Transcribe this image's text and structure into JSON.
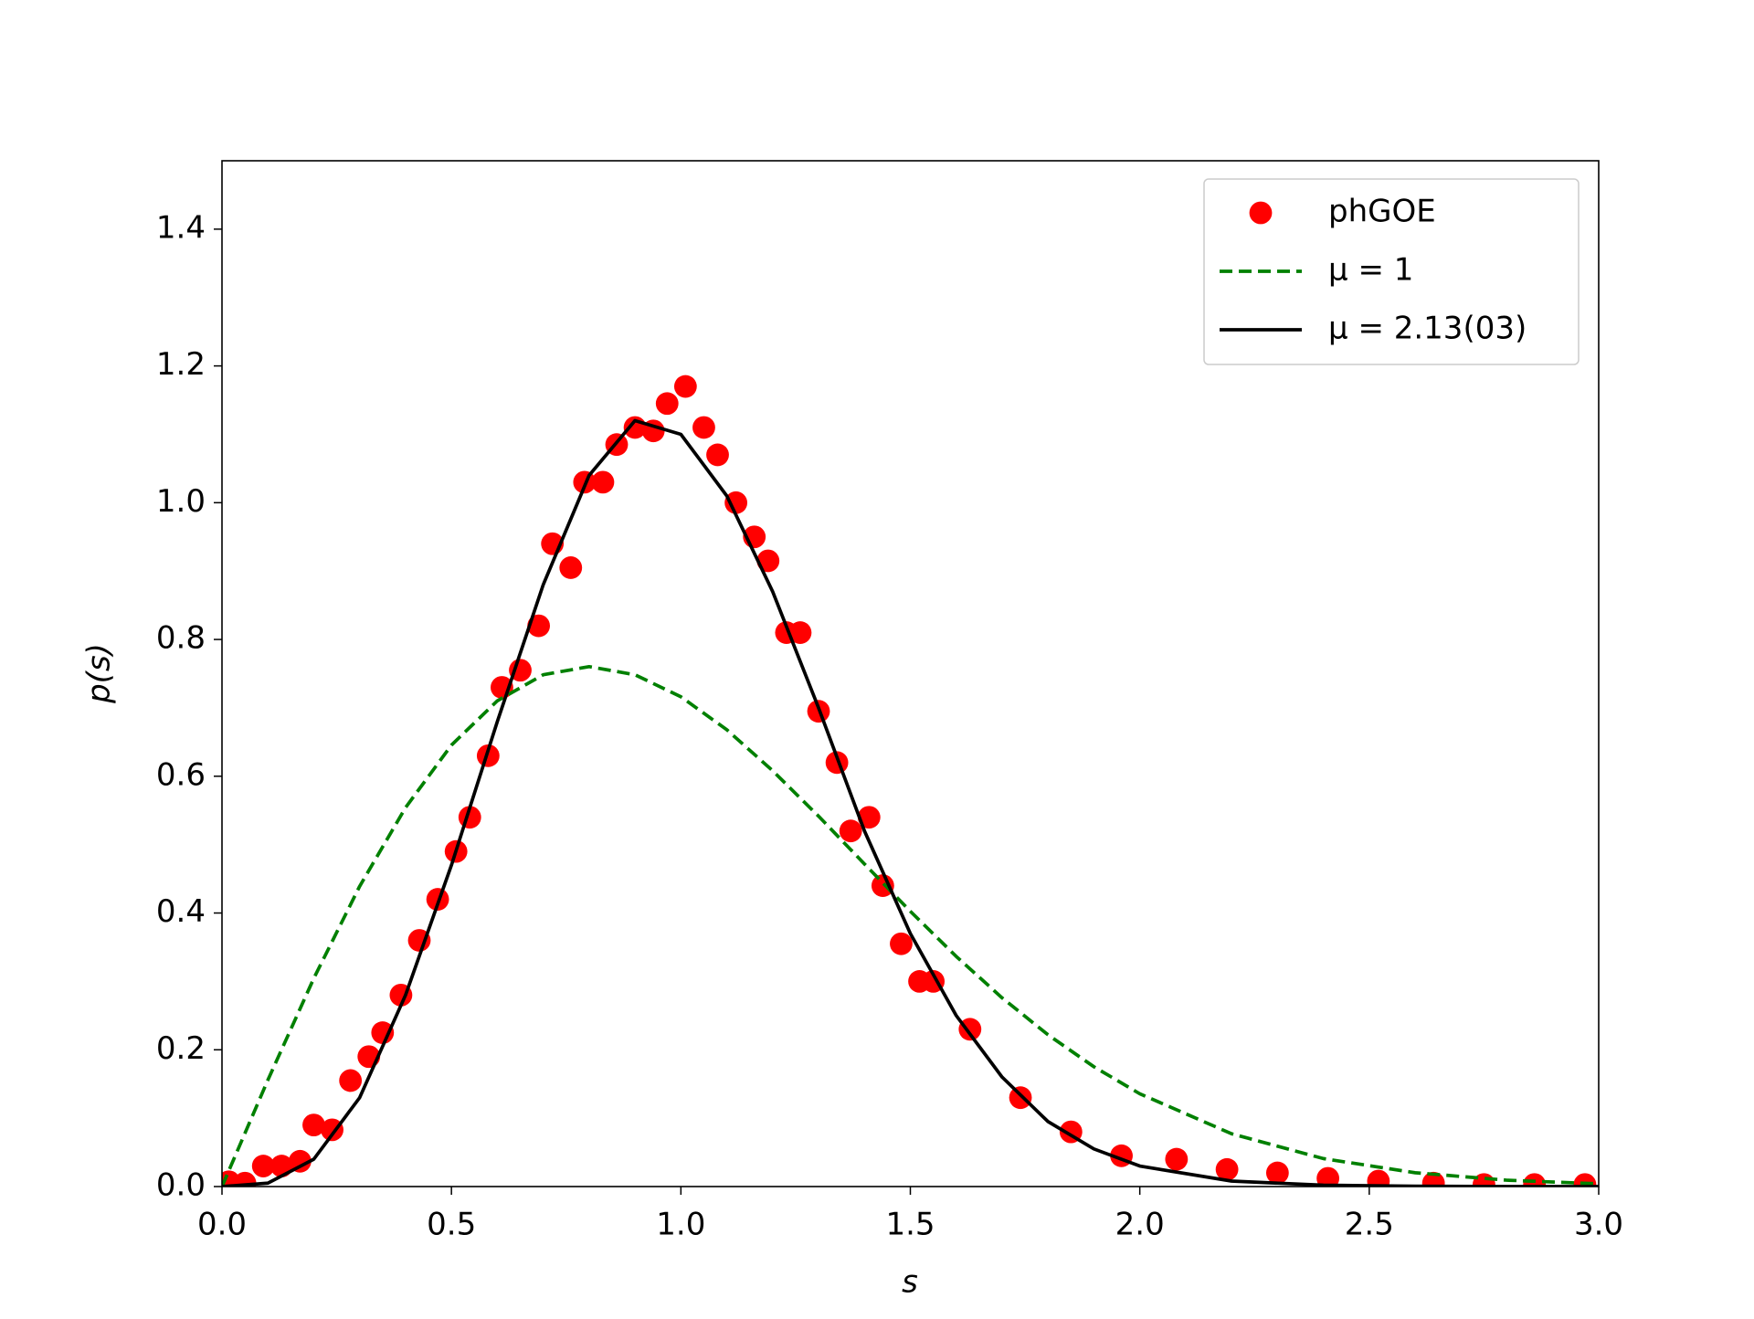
{
  "chart_data": {
    "type": "scatter",
    "xlabel": "s",
    "ylabel": "p(s)",
    "xlim": [
      0,
      3
    ],
    "ylim": [
      0,
      1.5
    ],
    "xticks": [
      {
        "value": 0,
        "label": "0.0"
      },
      {
        "value": 0.5,
        "label": "0.5"
      },
      {
        "value": 1,
        "label": "1.0"
      },
      {
        "value": 1.5,
        "label": "1.5"
      },
      {
        "value": 2,
        "label": "2.0"
      },
      {
        "value": 2.5,
        "label": "2.5"
      },
      {
        "value": 3,
        "label": "3.0"
      }
    ],
    "yticks": [
      {
        "value": 0,
        "label": "0.0"
      },
      {
        "value": 0.2,
        "label": "0.2"
      },
      {
        "value": 0.4,
        "label": "0.4"
      },
      {
        "value": 0.6,
        "label": "0.6"
      },
      {
        "value": 0.8,
        "label": "0.8"
      },
      {
        "value": 1,
        "label": "1.0"
      },
      {
        "value": 1.2,
        "label": "1.2"
      },
      {
        "value": 1.4,
        "label": "1.4"
      }
    ],
    "grid": false,
    "legend": "upper right",
    "series": [
      {
        "name": "phGOE",
        "type": "scatter",
        "color": "#ff0000",
        "x": [
          0.015,
          0.05,
          0.09,
          0.13,
          0.17,
          0.2,
          0.24,
          0.28,
          0.32,
          0.35,
          0.39,
          0.43,
          0.47,
          0.51,
          0.54,
          0.58,
          0.61,
          0.65,
          0.69,
          0.72,
          0.76,
          0.79,
          0.83,
          0.86,
          0.9,
          0.94,
          0.97,
          1.01,
          1.05,
          1.08,
          1.12,
          1.16,
          1.19,
          1.23,
          1.26,
          1.3,
          1.34,
          1.37,
          1.41,
          1.44,
          1.48,
          1.52,
          1.55,
          1.63,
          1.74,
          1.85,
          1.96,
          2.08,
          2.19,
          2.3,
          2.41,
          2.52,
          2.64,
          2.75,
          2.86,
          2.97
        ],
        "values": [
          0.007,
          0.005,
          0.03,
          0.03,
          0.037,
          0.09,
          0.083,
          0.155,
          0.19,
          0.225,
          0.28,
          0.36,
          0.42,
          0.49,
          0.54,
          0.63,
          0.73,
          0.755,
          0.82,
          0.94,
          0.905,
          1.03,
          1.03,
          1.085,
          1.11,
          1.105,
          1.145,
          1.17,
          1.11,
          1.07,
          1.0,
          0.95,
          0.915,
          0.81,
          0.81,
          0.695,
          0.62,
          0.52,
          0.54,
          0.44,
          0.355,
          0.3,
          0.3,
          0.23,
          0.13,
          0.08,
          0.045,
          0.04,
          0.025,
          0.02,
          0.012,
          0.008,
          0.005,
          0.003,
          0.003,
          0.003
        ]
      },
      {
        "name": "μ = 1",
        "type": "line",
        "linestyle": "dashed",
        "color": "#008000",
        "x": [
          0,
          0.1,
          0.2,
          0.3,
          0.4,
          0.5,
          0.6,
          0.7,
          0.8,
          0.9,
          1.0,
          1.1,
          1.2,
          1.3,
          1.4,
          1.5,
          1.6,
          1.7,
          1.8,
          1.9,
          2.0,
          2.2,
          2.4,
          2.6,
          2.8,
          3.0
        ],
        "values": [
          0,
          0.1558,
          0.3044,
          0.4391,
          0.5541,
          0.6455,
          0.7103,
          0.7484,
          0.7603,
          0.7484,
          0.7162,
          0.668,
          0.608,
          0.5416,
          0.4717,
          0.4025,
          0.3365,
          0.2759,
          0.2219,
          0.1752,
          0.1357,
          0.0772,
          0.0409,
          0.0202,
          0.0093,
          0.004
        ]
      },
      {
        "name": "μ = 2.13(03)",
        "type": "line",
        "linestyle": "solid",
        "color": "#000000",
        "x": [
          0,
          0.1,
          0.2,
          0.3,
          0.4,
          0.5,
          0.6,
          0.7,
          0.8,
          0.9,
          1.0,
          1.1,
          1.2,
          1.3,
          1.4,
          1.5,
          1.6,
          1.7,
          1.8,
          1.9,
          2.0,
          2.2,
          2.4,
          2.6,
          2.8,
          3.0
        ],
        "values": [
          0,
          0.005,
          0.04,
          0.13,
          0.28,
          0.47,
          0.68,
          0.88,
          1.04,
          1.12,
          1.1,
          1.01,
          0.87,
          0.7,
          0.52,
          0.37,
          0.25,
          0.16,
          0.095,
          0.055,
          0.03,
          0.008,
          0.002,
          0.0005,
          0.0001,
          0
        ]
      }
    ]
  }
}
